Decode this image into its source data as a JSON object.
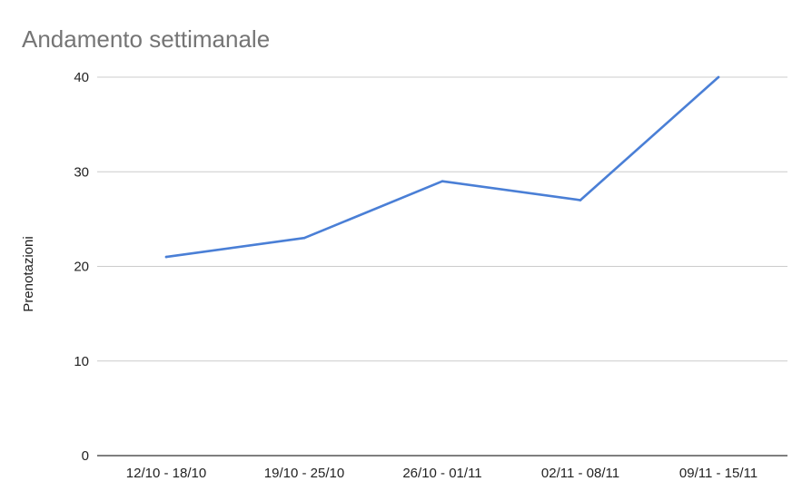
{
  "chart_data": {
    "type": "line",
    "title": "Andamento settimanale",
    "xlabel": "",
    "ylabel": "Prenotazioni",
    "categories": [
      "12/10 - 18/10",
      "19/10 - 25/10",
      "26/10 - 01/11",
      "02/11 - 08/11",
      "09/11 - 15/11"
    ],
    "series": [
      {
        "values": [
          21,
          23,
          29,
          27,
          40
        ]
      }
    ],
    "ylim": [
      0,
      40
    ],
    "yticks": [
      0,
      10,
      20,
      30,
      40
    ],
    "grid": true,
    "legend": "none",
    "colors": {
      "line": "#4a7fd6",
      "grid": "#cccccc",
      "axis": "#333333",
      "title": "#757575",
      "text": "#222222"
    }
  }
}
